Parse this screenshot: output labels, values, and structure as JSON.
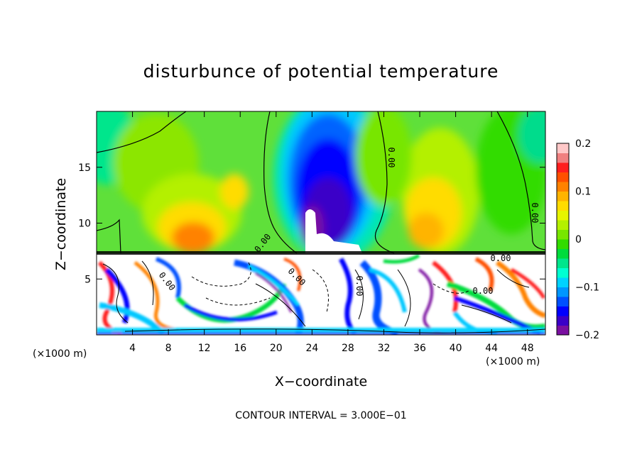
{
  "chart_data": {
    "type": "heatmap",
    "title": "disturbunce of potential temperature",
    "xlabel": "X−coordinate",
    "ylabel": "Z−coordinate",
    "x_unit_left": "(×1000 m)",
    "x_unit_right": "(×1000 m)",
    "footnote": "CONTOUR INTERVAL = 3.000E−01",
    "xlim": [
      0,
      50
    ],
    "ylim": [
      0,
      20
    ],
    "x_ticks": [
      "4",
      "8",
      "12",
      "16",
      "20",
      "24",
      "28",
      "32",
      "36",
      "40",
      "44",
      "48"
    ],
    "x_tick_values": [
      4,
      8,
      12,
      16,
      20,
      24,
      28,
      32,
      36,
      40,
      44,
      48
    ],
    "y_ticks": [
      "5",
      "10",
      "15"
    ],
    "y_tick_values": [
      5,
      10,
      15
    ],
    "colorbar": {
      "range": [
        -0.2,
        0.2
      ],
      "labels": [
        "0.2",
        "0.1",
        "0",
        "−0.1",
        "−0.2"
      ],
      "label_values": [
        0.2,
        0.1,
        0,
        -0.1,
        -0.2
      ],
      "colors": [
        "#7a0fa0",
        "#3b00c8",
        "#0000ff",
        "#0050ff",
        "#0096ff",
        "#00d2ff",
        "#00ffd2",
        "#00e68c",
        "#00dc3c",
        "#32dc00",
        "#78e600",
        "#b4f000",
        "#e6f500",
        "#ffdc00",
        "#ffb400",
        "#ff8200",
        "#ff5000",
        "#ff1e1e",
        "#f08080",
        "#ffc8c8"
      ]
    },
    "contour_labels": [
      "0.00",
      "0.00",
      "0.00",
      "0.00",
      "0.00",
      "0.00",
      "0.00",
      "0.00"
    ],
    "boundary_z": 7.2
  }
}
